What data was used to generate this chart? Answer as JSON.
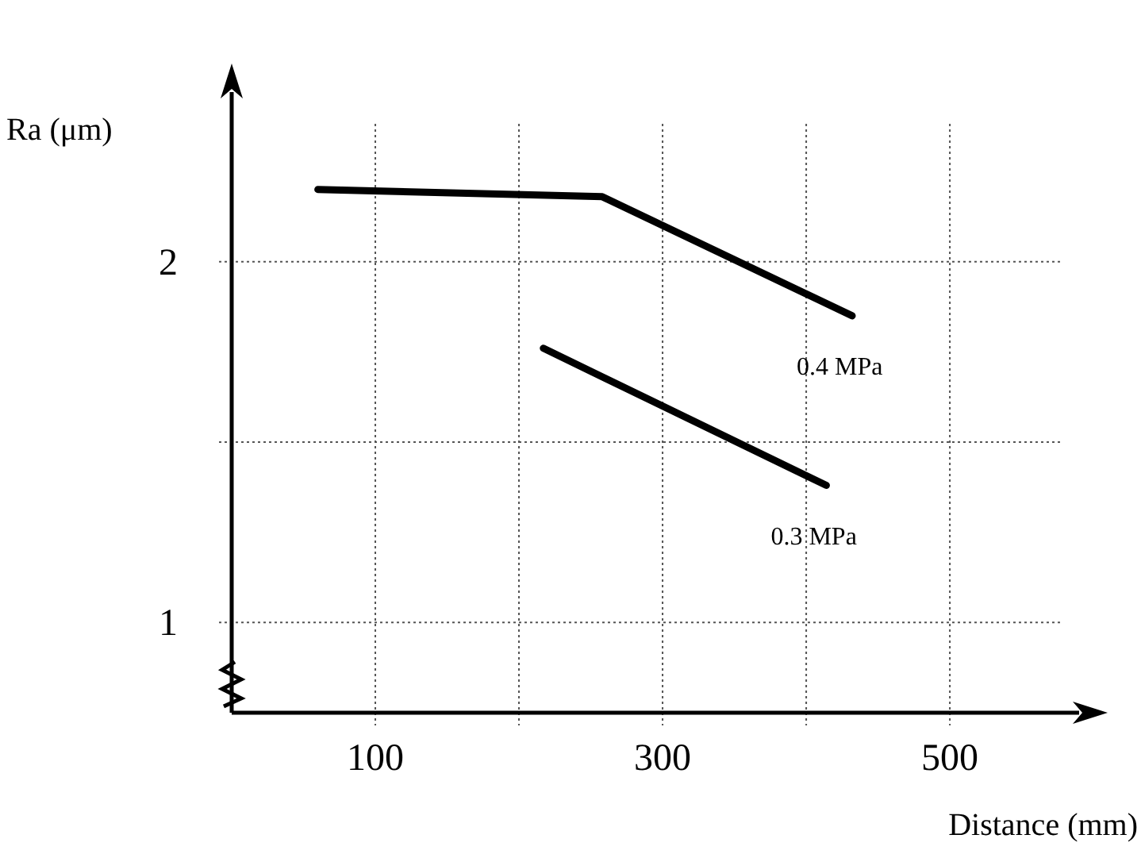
{
  "chart_data": {
    "type": "line",
    "xlabel": "Distance (mm)",
    "ylabel": "Ra (μm)",
    "xlim": [
      0,
      590
    ],
    "ylim": [
      0.75,
      2.47
    ],
    "xticks": [
      100,
      {
        "value": 200,
        "label": null
      },
      300,
      {
        "value": 400,
        "label": null
      },
      500
    ],
    "yticks": [
      1,
      {
        "value": 1.5,
        "label": null
      },
      2
    ],
    "grid": true,
    "marker": "none",
    "line_style": "solid",
    "series": [
      {
        "name": "0.4 MPa",
        "color": "#000000",
        "x": [
          60,
          258,
          432
        ],
        "values": [
          2.2,
          2.18,
          1.85
        ]
      },
      {
        "name": "0.3 MPa",
        "color": "#000000",
        "x": [
          217,
          414
        ],
        "values": [
          1.76,
          1.38
        ]
      }
    ]
  }
}
